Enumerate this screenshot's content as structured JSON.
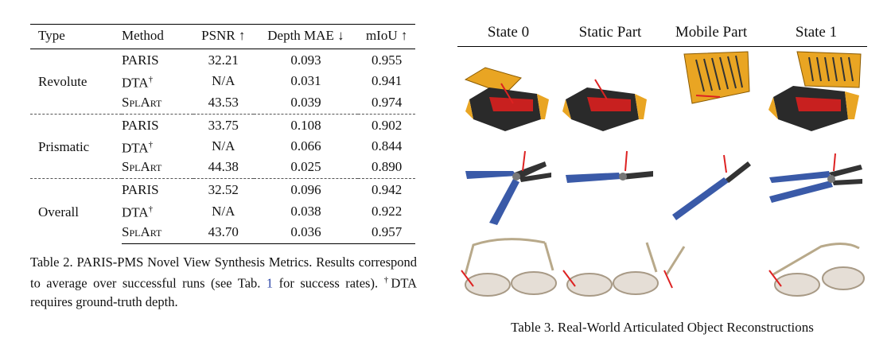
{
  "table2": {
    "headers": {
      "type": "Type",
      "method": "Method",
      "psnr": "PSNR ↑",
      "depth": "Depth MAE ↓",
      "miou": "mIoU ↑"
    },
    "groups": [
      {
        "type": "Revolute",
        "rows": [
          {
            "method": "PARIS",
            "psnr": "32.21",
            "depth": "0.093",
            "miou": "0.955"
          },
          {
            "method": "DTA",
            "psnr": "N/A",
            "depth": "0.031",
            "miou": "0.941"
          },
          {
            "method": "SplArt",
            "psnr": "43.53",
            "depth": "0.039",
            "miou": "0.974"
          }
        ]
      },
      {
        "type": "Prismatic",
        "rows": [
          {
            "method": "PARIS",
            "psnr": "33.75",
            "depth": "0.108",
            "miou": "0.902"
          },
          {
            "method": "DTA",
            "psnr": "N/A",
            "depth": "0.066",
            "miou": "0.844"
          },
          {
            "method": "SplArt",
            "psnr": "44.38",
            "depth": "0.025",
            "miou": "0.890"
          }
        ]
      },
      {
        "type": "Overall",
        "rows": [
          {
            "method": "PARIS",
            "psnr": "32.52",
            "depth": "0.096",
            "miou": "0.942"
          },
          {
            "method": "DTA",
            "psnr": "N/A",
            "depth": "0.038",
            "miou": "0.922"
          },
          {
            "method": "SplArt",
            "psnr": "43.70",
            "depth": "0.036",
            "miou": "0.957"
          }
        ]
      }
    ],
    "dagger": "†",
    "caption": {
      "part1": "Table 2. PARIS-PMS Novel View Synthesis Metrics. Results correspond to average over successful runs (see Tab. ",
      "ref": "1",
      "part2": " for success rates). ",
      "dagger": "†",
      "part3": "DTA requires ground-truth depth."
    }
  },
  "table3": {
    "columns": [
      "State 0",
      "Static Part",
      "Mobile Part",
      "State 1"
    ],
    "rows": [
      "toolbox",
      "pliers",
      "glasses"
    ],
    "caption": "Table 3. Real-World Articulated Object Reconstructions"
  }
}
